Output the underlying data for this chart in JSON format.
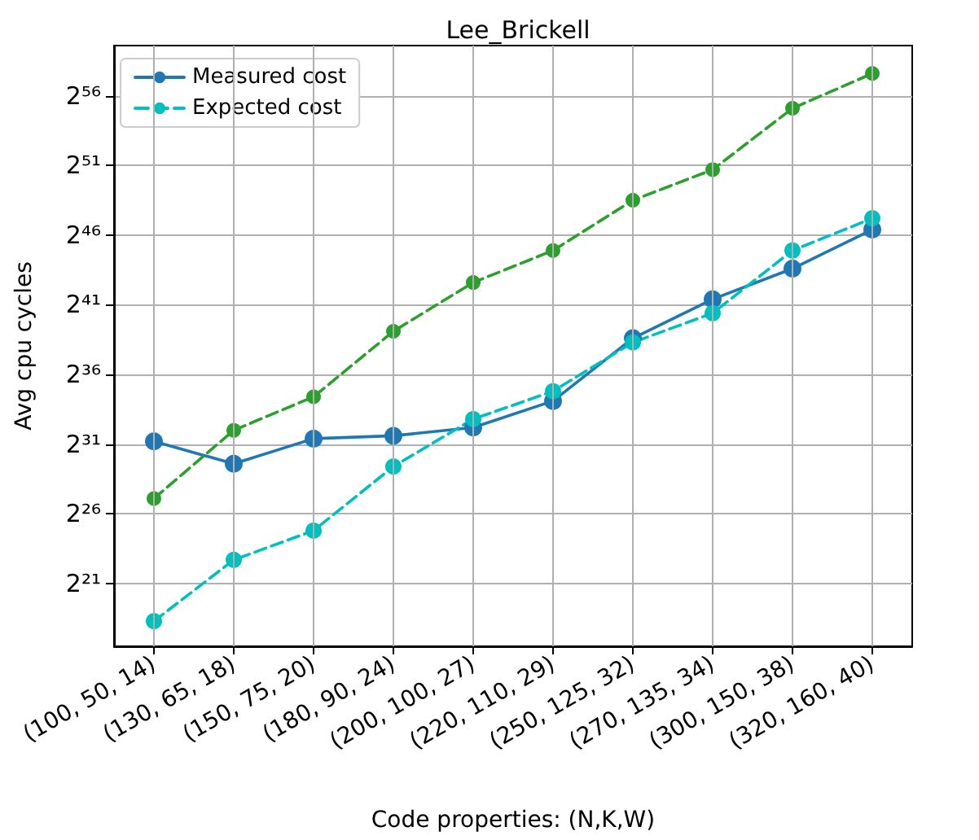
{
  "chart_data": {
    "type": "line",
    "title": "Lee_Brickell",
    "xlabel": "Code properties: (N,K,W)",
    "ylabel": "Avg cpu cycles",
    "categories": [
      "(100, 50, 14)",
      "(130, 65, 18)",
      "(150, 75, 20)",
      "(180, 90, 24)",
      "(200, 100, 27)",
      "(220, 110, 29)",
      "(250, 125, 32)",
      "(270, 135, 34)",
      "(300, 150, 38)",
      "(320, 160, 40)"
    ],
    "series": [
      {
        "name": "Measured cost",
        "color": "#1f77b4",
        "line_style": "solid",
        "values": [
          2470000000.0,
          814000000.0,
          2830000000.0,
          3260000000.0,
          4930000000.0,
          18400000000.0,
          417000000000.0,
          2900000000000.0,
          13300000000000.0,
          92900000000000.0
        ]
      },
      {
        "name": "Expected cost",
        "color": "#00bfbf",
        "line_style": "dashed",
        "values": [
          323000.0,
          6810000.0,
          29200000.0,
          708000000.0,
          7480000000.0,
          29900000000.0,
          339000000000.0,
          1450000000000.0,
          32800000000000.0,
          162000000000000.0
        ]
      },
      {
        "color": "#2ca02c",
        "line_style": "dashed",
        "values": [
          144000000.0,
          4290000000.0,
          22700000000.0,
          589000000000.0,
          6670000000000.0,
          32800000000000.0,
          398000000000000.0,
          1830000000000000.0,
          3.86e+16,
          2.18e+17
        ]
      }
    ],
    "log": "y",
    "ylim": [
      92700.0,
      8.74e+17
    ],
    "yticks": [
      {
        "value": 2097152,
        "label": "2²¹"
      },
      {
        "value": 67108864,
        "label": "2²⁶"
      },
      {
        "value": 2147483648,
        "label": "2³¹"
      },
      {
        "value": 68719476736,
        "label": "2³⁶"
      },
      {
        "value": 2199023255552,
        "label": "2⁴¹"
      },
      {
        "value": 70368744177664,
        "label": "2⁴⁶"
      },
      {
        "value": 2251799813685248,
        "label": "2⁵¹"
      },
      {
        "value": 72057594037927936,
        "label": "2⁵⁶"
      }
    ],
    "grid": true,
    "legend": "top left",
    "marker": "circle"
  }
}
